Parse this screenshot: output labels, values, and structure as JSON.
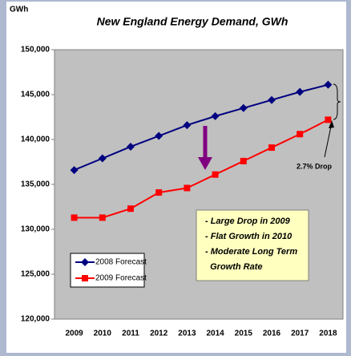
{
  "chart_data": {
    "type": "line",
    "title": "New England Energy Demand, GWh",
    "y_label": "GWh",
    "categories": [
      "2009",
      "2010",
      "2011",
      "2012",
      "2013",
      "2014",
      "2015",
      "2016",
      "2017",
      "2018"
    ],
    "series": [
      {
        "name": "2008 Forecast",
        "color": "#000080",
        "marker": "diamond",
        "values": [
          136600,
          137900,
          139200,
          140400,
          141600,
          142600,
          143500,
          144400,
          145300,
          146100
        ]
      },
      {
        "name": "2009 Forecast",
        "color": "#ff0000",
        "marker": "square",
        "values": [
          131300,
          131300,
          132300,
          134100,
          134600,
          136100,
          137600,
          139100,
          140600,
          142200
        ]
      }
    ],
    "ylim": [
      120000,
      150000
    ],
    "yticks": [
      {
        "value": 120000,
        "label": "120,000"
      },
      {
        "value": 125000,
        "label": "125,000"
      },
      {
        "value": 130000,
        "label": "130,000"
      },
      {
        "value": 135000,
        "label": "135,000"
      },
      {
        "value": 140000,
        "label": "140,000"
      },
      {
        "value": 145000,
        "label": "145,000"
      },
      {
        "value": 150000,
        "label": "150,000"
      }
    ],
    "grid": false,
    "legend": "lower left",
    "annotations": [
      "2.7% Drop"
    ],
    "note_box": [
      "- Large Drop in 2009",
      "- Flat Growth in 2010",
      "- Moderate Long Term",
      "  Growth Rate"
    ]
  }
}
